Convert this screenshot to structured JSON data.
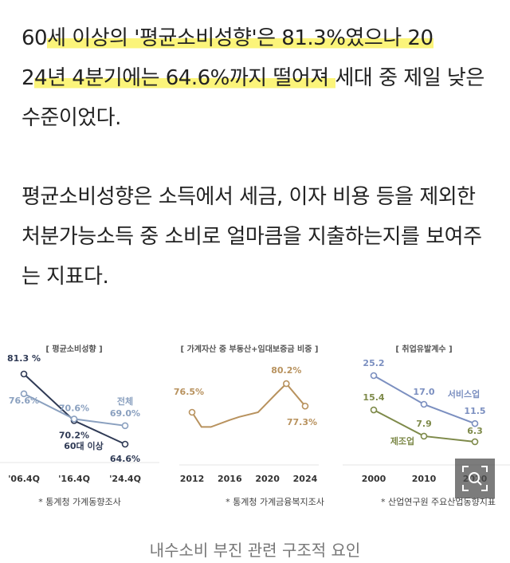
{
  "article": {
    "paragraph1": {
      "before": "60",
      "highlight1": "세 이상의 '평균소비성향'은 81.3%였으나 20",
      "pre2": "2",
      "highlight2": "4년 4분기에는 64.6%까지 떨어져 ",
      "after": "세대 중 제일 낮은 수준이었다."
    },
    "paragraph2": "평균소비성향은 소득에서 세금, 이자 비용 등을 제외한 처분가능소득 중 소비로 얼마큼을 지출하는지를 보여주는 지표다.",
    "highlight_color": "#fbf47a"
  },
  "chart_data": [
    {
      "type": "line",
      "title": "[ 평균소비성향 ]",
      "categories": [
        "'06.4Q",
        "'16.4Q",
        "'24.4Q"
      ],
      "series": [
        {
          "name": "60대 이상",
          "values": [
            81.3,
            70.2,
            64.6
          ],
          "labels": [
            "81.3 %",
            "70.2%",
            "64.6%"
          ],
          "color": "#2f3a55"
        },
        {
          "name": "전체",
          "values": [
            76.6,
            70.6,
            69.0
          ],
          "labels": [
            "76.6%",
            "70.6%",
            "69.0%"
          ],
          "color": "#8aa0bf"
        }
      ],
      "source": "* 통계청 가계동향조사"
    },
    {
      "type": "line",
      "title": "[ 가계자산 중 부동산+임대보증금 비중 ]",
      "x_ticks": [
        "2012",
        "2016",
        "2020",
        "2024"
      ],
      "series": [
        {
          "x": [
            2012,
            2013,
            2014,
            2016,
            2017,
            2019,
            2021,
            2022,
            2024
          ],
          "values": [
            76.5,
            74.6,
            74.6,
            75.5,
            75.9,
            76.5,
            79.0,
            80.2,
            77.3
          ],
          "labels": {
            "2012": "76.5%",
            "2022": "80.2%",
            "2024": "77.3%"
          },
          "color": "#b8925e"
        }
      ],
      "source": "* 통계청 가계금융복지조사"
    },
    {
      "type": "line",
      "title": "[ 취업유발계수 ]",
      "categories": [
        "2000",
        "2010",
        "2020"
      ],
      "series": [
        {
          "name": "서비스업",
          "values": [
            25.2,
            17.0,
            11.5
          ],
          "labels": [
            "25.2",
            "17.0",
            "11.5"
          ],
          "color": "#7b8fc0"
        },
        {
          "name": "제조업",
          "values": [
            15.4,
            7.9,
            6.3
          ],
          "labels": [
            "15.4",
            "7.9",
            "6.3"
          ],
          "color": "#7e8a4a"
        }
      ],
      "source": "* 산업연구원 주요산업동향지표"
    }
  ],
  "caption": "내수소비 부진 관련 구조적 요인",
  "zoom_icon": "zoom-magnifier-icon"
}
